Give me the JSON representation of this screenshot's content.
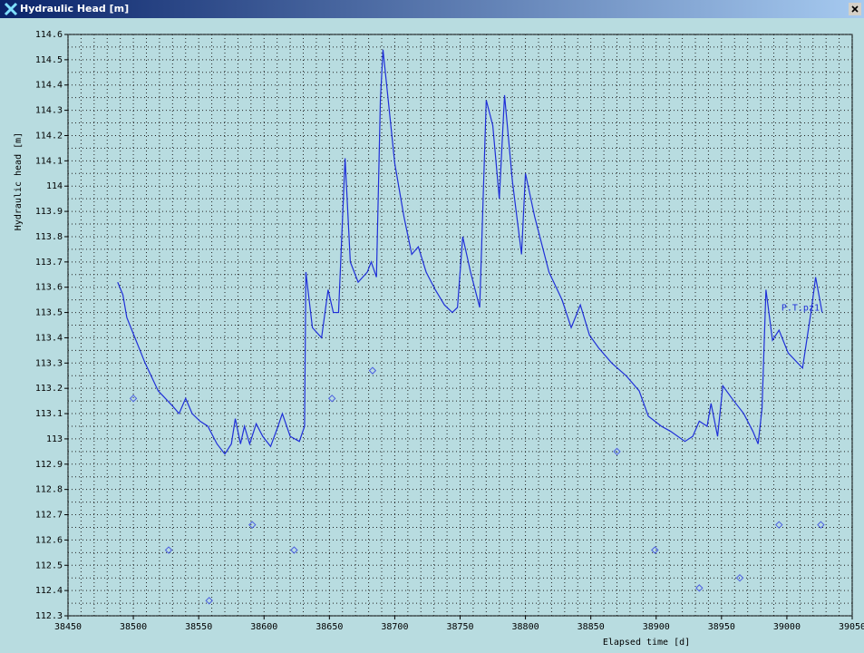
{
  "window": {
    "title": "Hydraulic Head [m]"
  },
  "chart_data": {
    "type": "line",
    "xlabel": "Elapsed time [d]",
    "ylabel": "Hydraulic head [m]",
    "xlim": [
      38450,
      39050
    ],
    "xticks": [
      38450,
      38500,
      38550,
      38600,
      38650,
      38700,
      38750,
      38800,
      38850,
      38900,
      38950,
      39000,
      39050
    ],
    "ylim": [
      112.3,
      114.6
    ],
    "yticks": [
      112.3,
      112.4,
      112.5,
      112.6,
      112.7,
      112.8,
      112.9,
      113,
      113.1,
      113.2,
      113.3,
      113.4,
      113.5,
      113.6,
      113.7,
      113.8,
      113.9,
      114,
      114.1,
      114.2,
      114.3,
      114.4,
      114.5,
      114.6
    ],
    "grid": true,
    "series": [
      {
        "name": "P.T.pz1",
        "color": "#1f2fd8",
        "x": [
          38488,
          38492,
          38495,
          38502,
          38509,
          38519,
          38530,
          38535,
          38540,
          38545,
          38551,
          38557,
          38564,
          38570,
          38575,
          38578,
          38582,
          38585,
          38589,
          38594,
          38599,
          38605,
          38610,
          38614,
          38620,
          38627,
          38631,
          38632,
          38637,
          38644,
          38649,
          38653,
          38657,
          38662,
          38666,
          38672,
          38679,
          38682,
          38686,
          38689,
          38691,
          38695,
          38700,
          38707,
          38713,
          38718,
          38724,
          38731,
          38738,
          38744,
          38748,
          38752,
          38758,
          38765,
          38770,
          38775,
          38780,
          38784,
          38790,
          38797,
          38800,
          38807,
          38818,
          38828,
          38835,
          38842,
          38849,
          38856,
          38866,
          38877,
          38887,
          38894,
          38904,
          38911,
          38922,
          38928,
          38933,
          38939,
          38942,
          38947,
          38951,
          38958,
          38967,
          38974,
          38978,
          38981,
          38984,
          38989,
          38994,
          39001,
          39012,
          39019,
          39022,
          39027
        ],
        "values": [
          113.62,
          113.57,
          113.48,
          113.39,
          113.3,
          113.19,
          113.13,
          113.1,
          113.16,
          113.1,
          113.07,
          113.05,
          112.98,
          112.94,
          112.98,
          113.08,
          112.98,
          113.05,
          112.98,
          113.06,
          113.01,
          112.97,
          113.04,
          113.1,
          113.01,
          112.99,
          113.05,
          113.66,
          113.44,
          113.4,
          113.59,
          113.5,
          113.5,
          114.11,
          113.7,
          113.62,
          113.66,
          113.7,
          113.64,
          114.34,
          114.54,
          114.34,
          114.09,
          113.88,
          113.73,
          113.76,
          113.66,
          113.59,
          113.53,
          113.5,
          113.52,
          113.8,
          113.66,
          113.52,
          114.34,
          114.24,
          113.95,
          114.36,
          114.02,
          113.73,
          114.05,
          113.88,
          113.66,
          113.55,
          113.44,
          113.53,
          113.41,
          113.36,
          113.3,
          113.25,
          113.19,
          113.09,
          113.05,
          113.03,
          112.99,
          113.01,
          113.07,
          113.05,
          113.14,
          113.01,
          113.21,
          113.16,
          113.1,
          113.03,
          112.98,
          113.12,
          113.59,
          113.39,
          113.43,
          113.34,
          113.28,
          113.52,
          113.64,
          113.5
        ]
      },
      {
        "type": "scatter",
        "marker": "diamond",
        "color": "#4a5ee0",
        "x": [
          38500,
          38527,
          38558,
          38591,
          38623,
          38652,
          38683,
          38870,
          38899,
          38933,
          38964,
          38994,
          39026
        ],
        "values": [
          113.16,
          112.56,
          112.36,
          112.66,
          112.56,
          113.16,
          113.27,
          112.95,
          112.56,
          112.41,
          112.45,
          112.66,
          112.66
        ]
      }
    ]
  }
}
